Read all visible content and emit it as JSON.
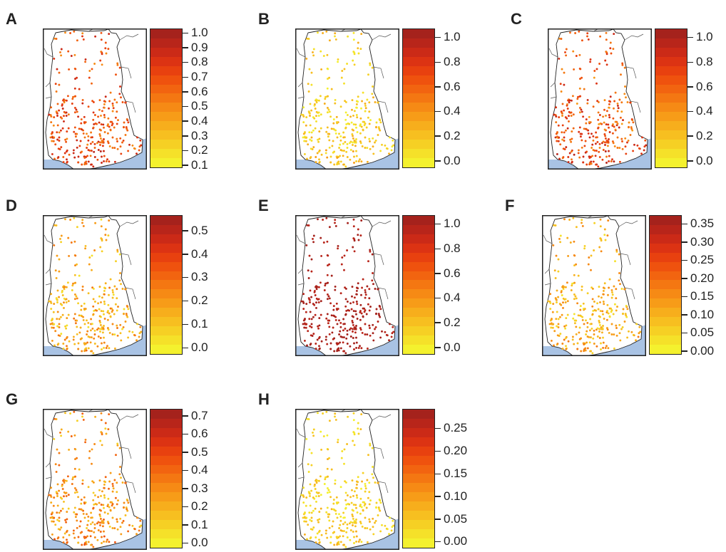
{
  "figure": {
    "colors": {
      "ocean": "#a9c3e4",
      "border": "#222222",
      "scale": [
        "#f4f12e",
        "#f5e129",
        "#f6d024",
        "#f7bf20",
        "#f7ae1c",
        "#f79c18",
        "#f68a15",
        "#f47712",
        "#f26410",
        "#ef520e",
        "#e8410f",
        "#dc3313",
        "#cb2a17",
        "#b8251a",
        "#a5221c"
      ]
    },
    "panels": [
      {
        "letter": "A",
        "ticks": [
          "1.0",
          "0.9",
          "0.8",
          "0.7",
          "0.6",
          "0.5",
          "0.4",
          "0.3",
          "0.2",
          "0.1"
        ],
        "tick_values": [
          1.0,
          0.9,
          0.8,
          0.7,
          0.6,
          0.5,
          0.4,
          0.3,
          0.2,
          0.1
        ],
        "range": [
          0.08,
          1.02
        ],
        "bias": 0.62,
        "spread": 0.22
      },
      {
        "letter": "B",
        "ticks": [
          "1.0",
          "0.8",
          "0.6",
          "0.4",
          "0.2",
          "0.0"
        ],
        "tick_values": [
          1.0,
          0.8,
          0.6,
          0.4,
          0.2,
          0.0
        ],
        "range": [
          -0.06,
          1.06
        ],
        "bias": 0.18,
        "spread": 0.14
      },
      {
        "letter": "C",
        "ticks": [
          "1.0",
          "0.8",
          "0.6",
          "0.4",
          "0.2",
          "0.0"
        ],
        "tick_values": [
          1.0,
          0.8,
          0.6,
          0.4,
          0.2,
          0.0
        ],
        "range": [
          -0.06,
          1.06
        ],
        "bias": 0.62,
        "spread": 0.24
      },
      {
        "letter": "D",
        "ticks": [
          "0.5",
          "0.4",
          "0.3",
          "0.2",
          "0.1",
          "0.0"
        ],
        "tick_values": [
          0.5,
          0.4,
          0.3,
          0.2,
          0.1,
          0.0
        ],
        "range": [
          -0.03,
          0.56
        ],
        "bias": 0.3,
        "spread": 0.2
      },
      {
        "letter": "E",
        "ticks": [
          "1.0",
          "0.8",
          "0.6",
          "0.4",
          "0.2",
          "0.0"
        ],
        "tick_values": [
          1.0,
          0.8,
          0.6,
          0.4,
          0.2,
          0.0
        ],
        "range": [
          -0.06,
          1.06
        ],
        "bias": 0.93,
        "spread": 0.05
      },
      {
        "letter": "F",
        "ticks": [
          "0.35",
          "0.30",
          "0.25",
          "0.20",
          "0.15",
          "0.10",
          "0.05",
          "0.00"
        ],
        "tick_values": [
          0.35,
          0.3,
          0.25,
          0.2,
          0.15,
          0.1,
          0.05,
          0.0
        ],
        "range": [
          -0.01,
          0.37
        ],
        "bias": 0.28,
        "spread": 0.18
      },
      {
        "letter": "G",
        "ticks": [
          "0.7",
          "0.6",
          "0.5",
          "0.4",
          "0.3",
          "0.2",
          "0.1",
          "0.0"
        ],
        "tick_values": [
          0.7,
          0.6,
          0.5,
          0.4,
          0.3,
          0.2,
          0.1,
          0.0
        ],
        "range": [
          -0.03,
          0.73
        ],
        "bias": 0.38,
        "spread": 0.22
      },
      {
        "letter": "H",
        "ticks": [
          "0.25",
          "0.20",
          "0.15",
          "0.10",
          "0.05",
          "0.00"
        ],
        "tick_values": [
          0.25,
          0.2,
          0.15,
          0.1,
          0.05,
          0.0
        ],
        "range": [
          -0.015,
          0.29
        ],
        "bias": 0.16,
        "spread": 0.12
      }
    ]
  }
}
